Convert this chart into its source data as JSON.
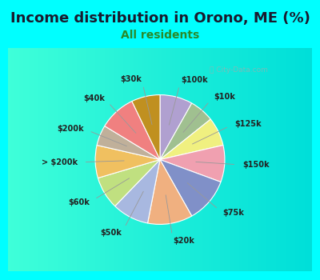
{
  "title": "Income distribution in Orono, ME (%)",
  "subtitle": "All residents",
  "title_color": "#1a1a2e",
  "subtitle_color": "#2a8a2a",
  "bg_cyan": "#00FFFF",
  "chart_bg": "#e8f5ee",
  "watermark": "ⓘ City-Data.com",
  "labels": [
    "$100k",
    "$10k",
    "$125k",
    "$150k",
    "$75k",
    "$20k",
    "$50k",
    "$60k",
    "> $200k",
    "$200k",
    "$40k",
    "$30k"
  ],
  "values": [
    8,
    6,
    7,
    9,
    11,
    11,
    9,
    8,
    8,
    5,
    9,
    7
  ],
  "colors": [
    "#b0a0d0",
    "#a0c090",
    "#f0f080",
    "#f0a0b0",
    "#8090c8",
    "#f0b080",
    "#a8b8e0",
    "#c0e080",
    "#f0c060",
    "#c0b09a",
    "#f08080",
    "#c09020"
  ],
  "label_color": "#222222",
  "line_color": "#999999",
  "title_fontsize": 13,
  "subtitle_fontsize": 10,
  "label_fontsize": 7
}
